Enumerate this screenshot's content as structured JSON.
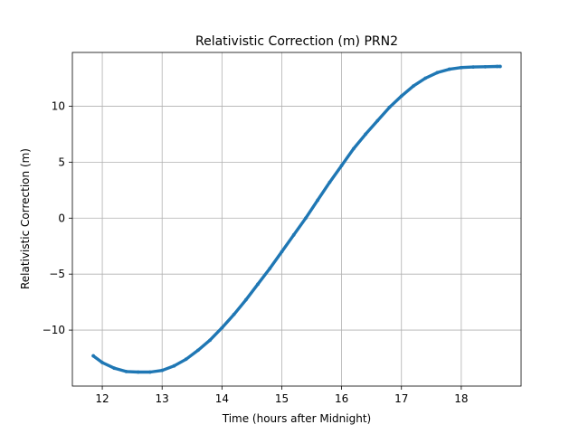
{
  "chart_data": {
    "type": "scatter",
    "title": "Relativistic Correction (m) PRN2",
    "xlabel": "Time (hours after Midnight)",
    "ylabel": "Relativistic Correction (m)",
    "xlim": [
      11.5,
      19.0
    ],
    "ylim": [
      -15.0,
      14.8
    ],
    "grid": true,
    "series_color": "#1f77b4",
    "x_ticks": [
      {
        "value": 12,
        "label": "12"
      },
      {
        "value": 13,
        "label": "13"
      },
      {
        "value": 14,
        "label": "14"
      },
      {
        "value": 15,
        "label": "15"
      },
      {
        "value": 16,
        "label": "16"
      },
      {
        "value": 17,
        "label": "17"
      },
      {
        "value": 18,
        "label": "18"
      }
    ],
    "y_ticks": [
      {
        "value": -10,
        "label": "−10"
      },
      {
        "value": -5,
        "label": "−5"
      },
      {
        "value": 0,
        "label": "0"
      },
      {
        "value": 5,
        "label": "5"
      },
      {
        "value": 10,
        "label": "10"
      }
    ],
    "series": [
      {
        "x": [
          11.85,
          12.0,
          12.2,
          12.4,
          12.6,
          12.8,
          13.0,
          13.2,
          13.4,
          13.6,
          13.8,
          14.0,
          14.2,
          14.4,
          14.6,
          14.8,
          15.0,
          15.2,
          15.4,
          15.6,
          15.8,
          16.0,
          16.2,
          16.4,
          16.6,
          16.8,
          17.0,
          17.2,
          17.4,
          17.6,
          17.8,
          18.0,
          18.2,
          18.4,
          18.6,
          18.65
        ],
        "y": [
          -12.3,
          -12.9,
          -13.4,
          -13.7,
          -13.75,
          -13.75,
          -13.6,
          -13.2,
          -12.6,
          -11.8,
          -10.9,
          -9.8,
          -8.6,
          -7.3,
          -5.9,
          -4.5,
          -3.0,
          -1.5,
          0.0,
          1.6,
          3.2,
          4.7,
          6.2,
          7.5,
          8.7,
          9.9,
          10.9,
          11.8,
          12.5,
          13.0,
          13.3,
          13.45,
          13.5,
          13.52,
          13.55,
          13.55
        ]
      }
    ]
  }
}
